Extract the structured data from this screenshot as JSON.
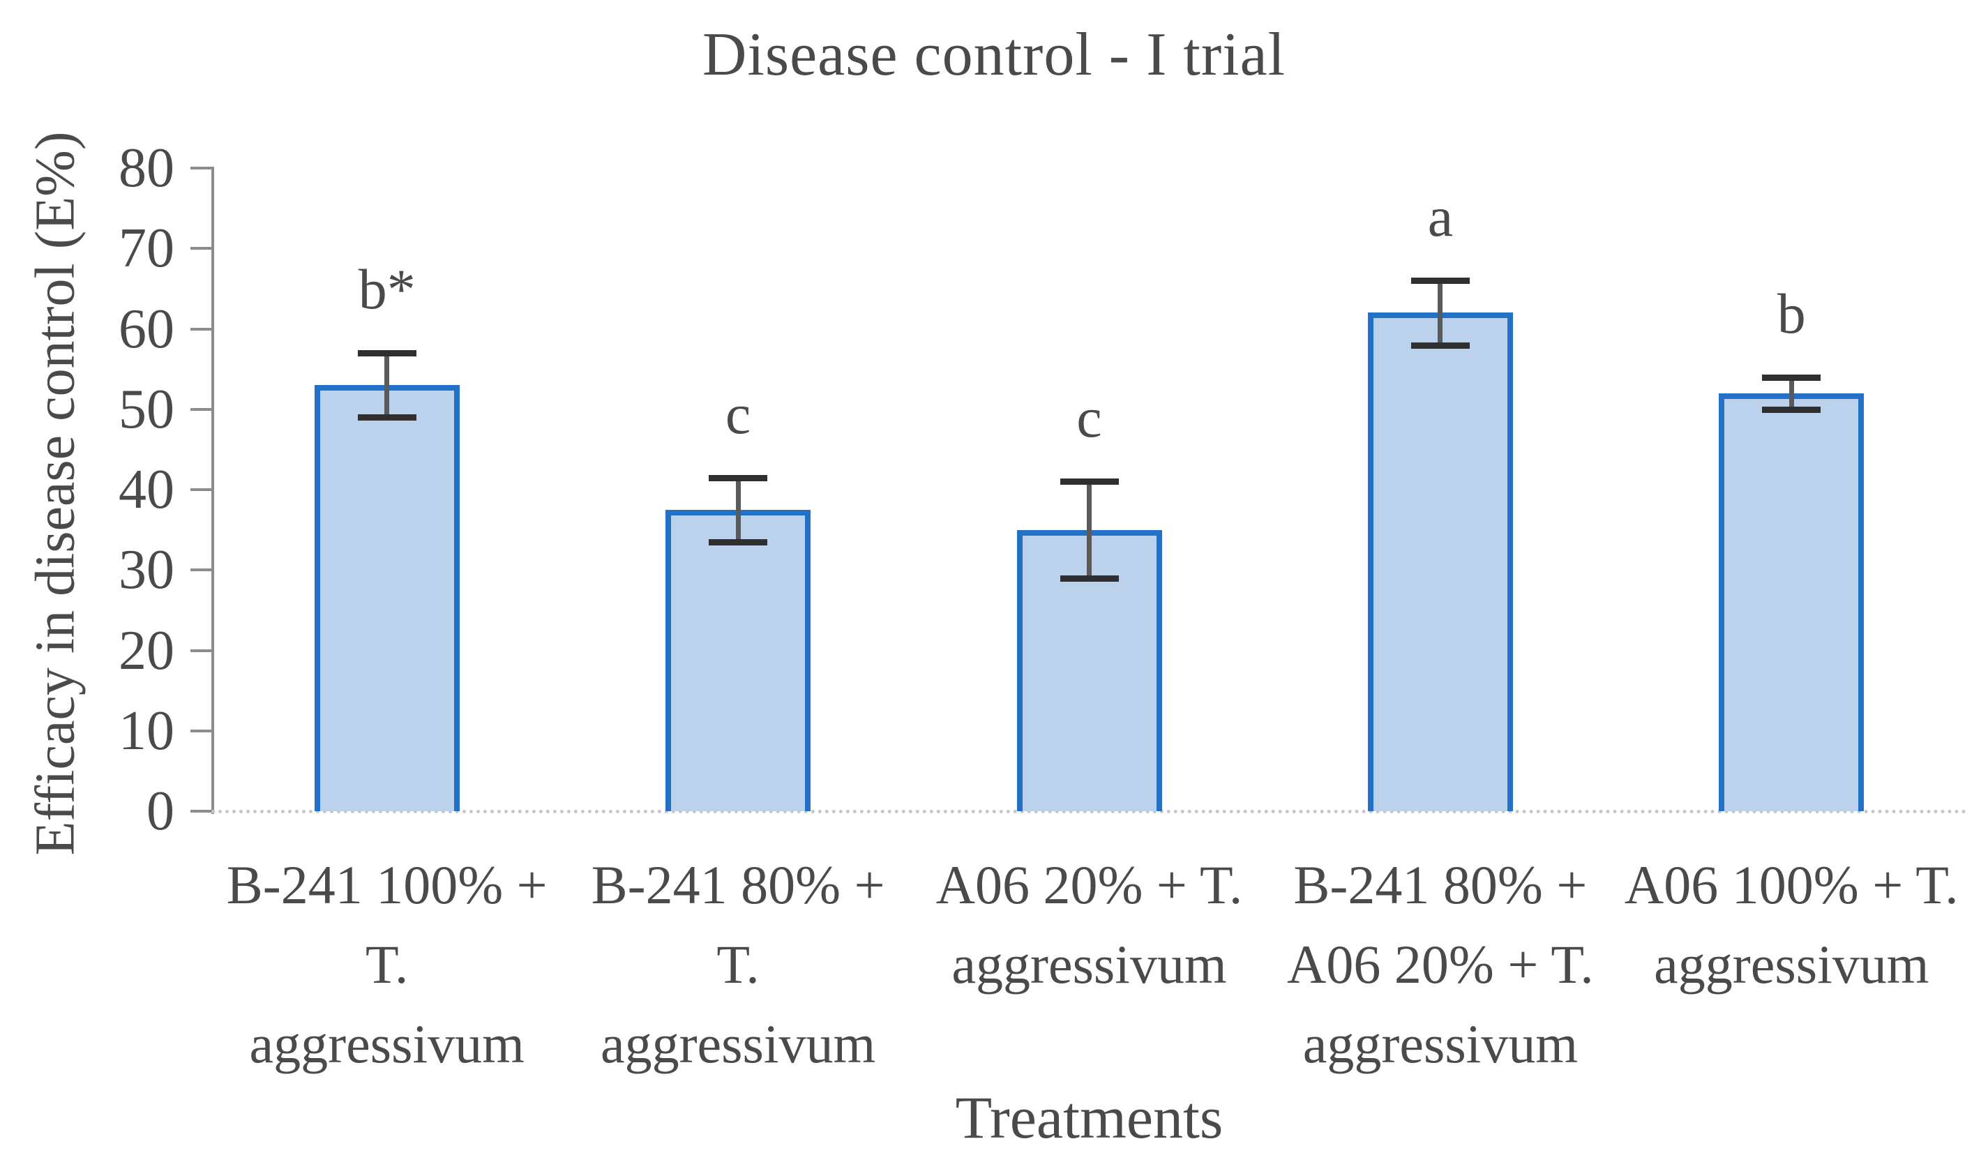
{
  "chart_data": {
    "type": "bar",
    "title": "Disease control - I trial",
    "xlabel": "Treatments",
    "ylabel": "Efficacy in disease control (E%)",
    "ylim": [
      0,
      80
    ],
    "yticks": [
      0,
      10,
      20,
      30,
      40,
      50,
      60,
      70,
      80
    ],
    "grid": false,
    "legend": null,
    "categories": [
      "B-241 100% +\nT.\naggressivum",
      "B-241 80% + T.\naggressivum",
      "A06 20% + T.\naggressivum",
      "B-241 80% +\nA06 20% + T.\naggressivum",
      "A06 100% + T.\naggressivum"
    ],
    "values": [
      53,
      37.5,
      35,
      62,
      52
    ],
    "errors": [
      4,
      4,
      6,
      4,
      2
    ],
    "sig_letters": [
      "b*",
      "c",
      "c",
      "a",
      "b"
    ],
    "bar_fill_color": "#bcd1ec",
    "bar_border_color": "#2271c7",
    "error_bar_color": "#2f2f2f",
    "axis_color": "#8c8c8c",
    "text_color": "#4a4a4a"
  }
}
